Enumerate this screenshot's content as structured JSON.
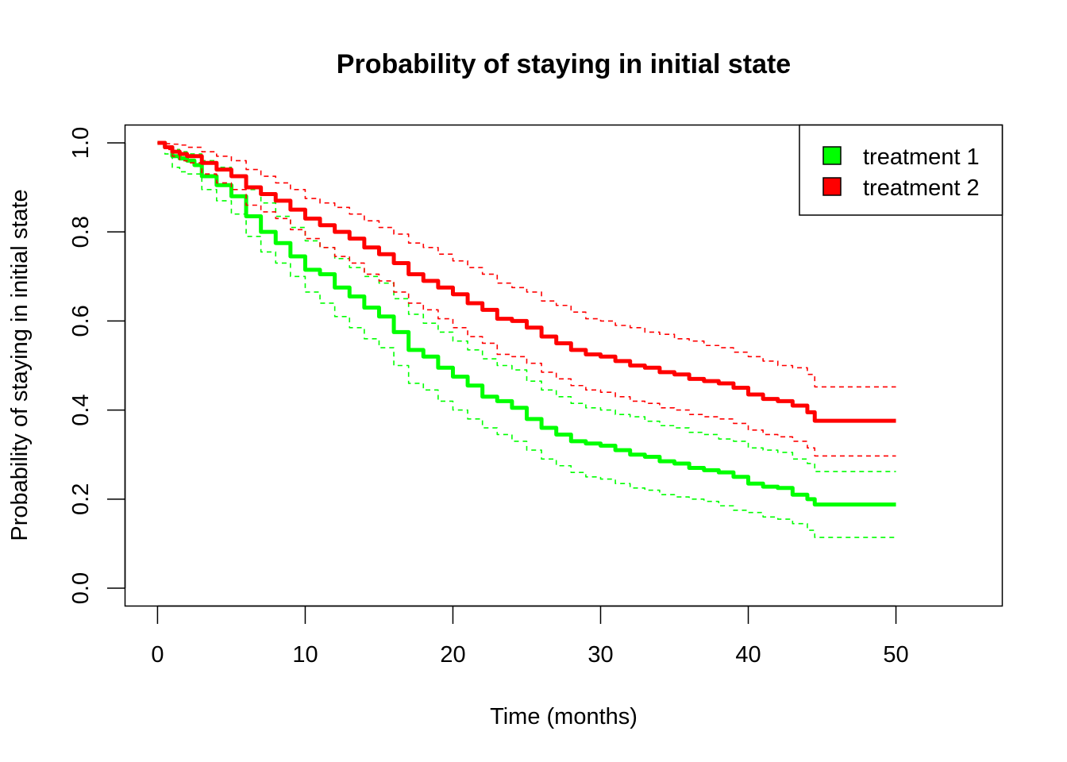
{
  "chart_data": {
    "type": "line",
    "title": "Probability of staying in initial state",
    "xlabel": "Time (months)",
    "ylabel": "Probability of staying in initial state",
    "xlim": [
      -2.2,
      57.2
    ],
    "ylim": [
      -0.04,
      1.04
    ],
    "x_ticks": [
      "0",
      "10",
      "20",
      "30",
      "40",
      "50"
    ],
    "y_ticks": [
      "0.0",
      "0.2",
      "0.4",
      "0.6",
      "0.8",
      "1.0"
    ],
    "legend": {
      "placement": "top-right",
      "entries": [
        {
          "label": "treatment 1",
          "color": "#00ff00"
        },
        {
          "label": "treatment 2",
          "color": "#ff0000"
        }
      ]
    },
    "series": [
      {
        "name": "treatment 1",
        "color": "#00ff00",
        "style": "solid",
        "x": [
          0,
          0.5,
          1,
          1.5,
          2,
          2.5,
          3,
          4,
          5,
          6,
          7,
          8,
          9,
          10,
          11,
          12,
          13,
          14,
          15,
          16,
          17,
          18,
          19,
          20,
          21,
          22,
          23,
          24,
          25,
          26,
          27,
          28,
          29,
          30,
          31,
          32,
          33,
          34,
          35,
          36,
          37,
          38,
          39,
          40,
          41,
          42,
          43,
          44,
          44.5,
          50
        ],
        "y": [
          1.0,
          0.99,
          0.97,
          0.965,
          0.96,
          0.95,
          0.925,
          0.905,
          0.88,
          0.835,
          0.8,
          0.775,
          0.745,
          0.715,
          0.705,
          0.675,
          0.655,
          0.63,
          0.61,
          0.575,
          0.535,
          0.52,
          0.495,
          0.475,
          0.455,
          0.43,
          0.42,
          0.405,
          0.38,
          0.36,
          0.345,
          0.33,
          0.325,
          0.32,
          0.31,
          0.3,
          0.295,
          0.285,
          0.28,
          0.27,
          0.265,
          0.26,
          0.25,
          0.235,
          0.228,
          0.225,
          0.21,
          0.2,
          0.188,
          0.188
        ]
      },
      {
        "name": "treatment 1",
        "color": "#00ff00",
        "style": "dashed",
        "x": [
          0,
          0.5,
          1,
          1.5,
          2,
          3,
          4,
          5,
          6,
          7,
          8,
          9,
          10,
          11,
          12,
          13,
          14,
          15,
          16,
          17,
          18,
          19,
          20,
          21,
          22,
          23,
          24,
          25,
          26,
          27,
          28,
          29,
          30,
          31,
          32,
          33,
          34,
          35,
          36,
          37,
          38,
          39,
          40,
          41,
          42,
          43,
          44,
          44.5,
          50
        ],
        "y": [
          1.0,
          0.99,
          0.985,
          0.98,
          0.975,
          0.96,
          0.945,
          0.925,
          0.895,
          0.865,
          0.835,
          0.81,
          0.78,
          0.765,
          0.74,
          0.72,
          0.7,
          0.685,
          0.65,
          0.615,
          0.595,
          0.575,
          0.555,
          0.535,
          0.515,
          0.5,
          0.49,
          0.465,
          0.445,
          0.43,
          0.415,
          0.405,
          0.4,
          0.39,
          0.385,
          0.375,
          0.365,
          0.36,
          0.35,
          0.345,
          0.335,
          0.33,
          0.315,
          0.31,
          0.305,
          0.29,
          0.28,
          0.262,
          0.262
        ]
      },
      {
        "name": "treatment 1",
        "color": "#00ff00",
        "style": "dashed",
        "x": [
          0,
          0.5,
          1,
          1.5,
          2,
          3,
          4,
          5,
          6,
          7,
          8,
          9,
          10,
          11,
          12,
          13,
          14,
          15,
          16,
          17,
          18,
          19,
          20,
          21,
          22,
          23,
          24,
          25,
          26,
          27,
          28,
          29,
          30,
          31,
          32,
          33,
          34,
          35,
          36,
          37,
          38,
          39,
          40,
          41,
          42,
          43,
          44,
          44.5,
          50
        ],
        "y": [
          1.0,
          0.975,
          0.945,
          0.935,
          0.93,
          0.895,
          0.87,
          0.84,
          0.79,
          0.755,
          0.73,
          0.7,
          0.665,
          0.64,
          0.61,
          0.585,
          0.56,
          0.54,
          0.5,
          0.46,
          0.445,
          0.42,
          0.4,
          0.38,
          0.36,
          0.345,
          0.33,
          0.31,
          0.29,
          0.275,
          0.26,
          0.25,
          0.245,
          0.235,
          0.225,
          0.22,
          0.21,
          0.205,
          0.2,
          0.195,
          0.185,
          0.175,
          0.17,
          0.16,
          0.155,
          0.145,
          0.13,
          0.114,
          0.114
        ]
      },
      {
        "name": "treatment 2",
        "color": "#ff0000",
        "style": "solid",
        "x": [
          0,
          0.5,
          1,
          1.5,
          2,
          3,
          4,
          5,
          6,
          7,
          8,
          9,
          10,
          11,
          12,
          13,
          14,
          15,
          16,
          17,
          18,
          19,
          20,
          21,
          22,
          23,
          24,
          25,
          26,
          27,
          28,
          29,
          30,
          31,
          32,
          33,
          34,
          35,
          36,
          37,
          38,
          39,
          40,
          41,
          42,
          43,
          44,
          44.5,
          50
        ],
        "y": [
          1.0,
          0.99,
          0.98,
          0.975,
          0.97,
          0.955,
          0.94,
          0.925,
          0.9,
          0.885,
          0.87,
          0.85,
          0.83,
          0.815,
          0.8,
          0.785,
          0.765,
          0.75,
          0.73,
          0.705,
          0.69,
          0.675,
          0.66,
          0.64,
          0.625,
          0.605,
          0.6,
          0.585,
          0.565,
          0.55,
          0.535,
          0.525,
          0.52,
          0.51,
          0.5,
          0.495,
          0.485,
          0.48,
          0.47,
          0.465,
          0.46,
          0.45,
          0.435,
          0.425,
          0.42,
          0.41,
          0.395,
          0.376,
          0.376
        ]
      },
      {
        "name": "treatment 2",
        "color": "#ff0000",
        "style": "dashed",
        "x": [
          0,
          0.5,
          1,
          1.5,
          2,
          3,
          4,
          5,
          6,
          7,
          8,
          9,
          10,
          11,
          12,
          13,
          14,
          15,
          16,
          17,
          18,
          19,
          20,
          21,
          22,
          23,
          24,
          25,
          26,
          27,
          28,
          29,
          30,
          31,
          32,
          33,
          34,
          35,
          36,
          37,
          38,
          39,
          40,
          41,
          42,
          43,
          44,
          44.5,
          50
        ],
        "y": [
          1.0,
          0.998,
          0.997,
          0.995,
          0.99,
          0.98,
          0.97,
          0.96,
          0.94,
          0.925,
          0.91,
          0.895,
          0.875,
          0.865,
          0.855,
          0.84,
          0.825,
          0.81,
          0.795,
          0.775,
          0.765,
          0.75,
          0.735,
          0.72,
          0.705,
          0.685,
          0.675,
          0.665,
          0.645,
          0.635,
          0.62,
          0.605,
          0.6,
          0.59,
          0.585,
          0.575,
          0.57,
          0.56,
          0.555,
          0.545,
          0.54,
          0.53,
          0.52,
          0.51,
          0.5,
          0.495,
          0.48,
          0.452,
          0.452
        ]
      },
      {
        "name": "treatment 2",
        "color": "#ff0000",
        "style": "dashed",
        "x": [
          0,
          0.5,
          1,
          1.5,
          2,
          3,
          4,
          5,
          6,
          7,
          8,
          9,
          10,
          11,
          12,
          13,
          14,
          15,
          16,
          17,
          18,
          19,
          20,
          21,
          22,
          23,
          24,
          25,
          26,
          27,
          28,
          29,
          30,
          31,
          32,
          33,
          34,
          35,
          36,
          37,
          38,
          39,
          40,
          41,
          42,
          43,
          44,
          44.5,
          50
        ],
        "y": [
          1.0,
          0.985,
          0.97,
          0.96,
          0.955,
          0.93,
          0.91,
          0.895,
          0.86,
          0.845,
          0.83,
          0.805,
          0.785,
          0.765,
          0.745,
          0.73,
          0.705,
          0.69,
          0.665,
          0.64,
          0.625,
          0.605,
          0.585,
          0.565,
          0.55,
          0.525,
          0.52,
          0.505,
          0.485,
          0.47,
          0.455,
          0.445,
          0.44,
          0.43,
          0.42,
          0.415,
          0.405,
          0.4,
          0.39,
          0.385,
          0.38,
          0.37,
          0.355,
          0.345,
          0.34,
          0.33,
          0.315,
          0.297,
          0.297
        ]
      }
    ]
  }
}
